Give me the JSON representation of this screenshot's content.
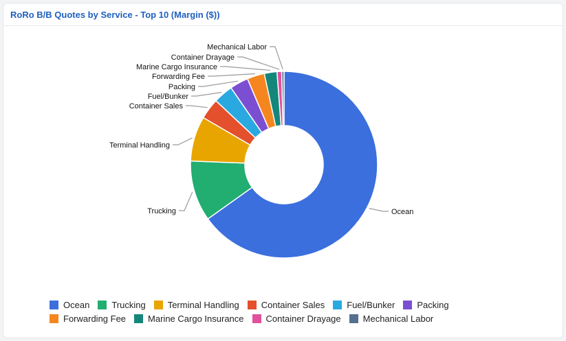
{
  "title": "RoRo B/B Quotes by Service - Top 10 (Margin ($))",
  "chart_data": {
    "type": "pie",
    "donut": true,
    "title": "RoRo B/B Quotes by Service - Top 10 (Margin ($))",
    "legend_position": "bottom",
    "categories": [
      "Ocean",
      "Trucking",
      "Terminal Handling",
      "Container Sales",
      "Fuel/Bunker",
      "Packing",
      "Forwarding Fee",
      "Marine Cargo Insurance",
      "Container Drayage",
      "Mechanical Labor"
    ],
    "values": [
      65.2,
      10.5,
      7.8,
      3.6,
      3.4,
      3.2,
      3.0,
      2.2,
      0.8,
      0.4
    ],
    "colors": [
      "#3b6fdd",
      "#22ad71",
      "#e8a500",
      "#e4502c",
      "#2aa9e0",
      "#7b4fd1",
      "#f5861f",
      "#14877a",
      "#e0509b",
      "#56708f"
    ]
  }
}
